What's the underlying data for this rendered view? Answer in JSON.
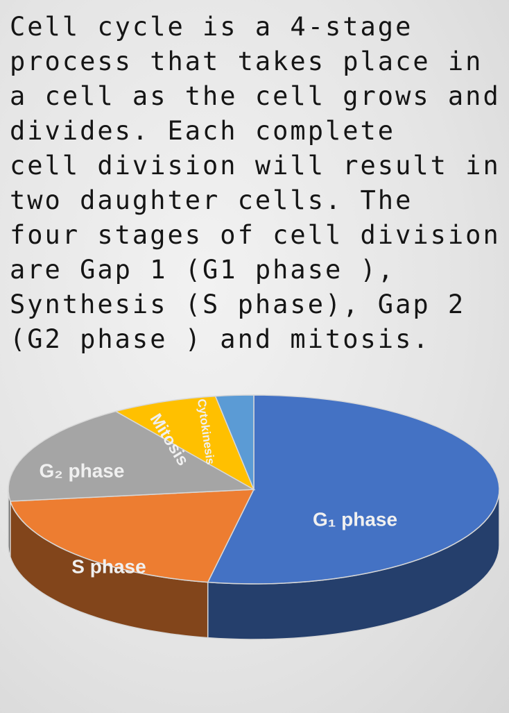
{
  "text": [
    "Cell cycle is a 4-stage",
    "process that takes place in",
    "a cell as the cell grows and",
    "divides. Each complete",
    "cell division will result in",
    "two daughter cells. The",
    "four stages of cell division",
    "are Gap 1 (G1 phase ),",
    "Synthesis (S phase), Gap 2",
    "(G2 phase ) and mitosis."
  ],
  "chart_data": {
    "type": "pie",
    "categories": [
      "G₁ phase",
      "S phase",
      "G₂ phase",
      "Mitosis",
      "Cytokinesis"
    ],
    "values": [
      53,
      20,
      17.5,
      7,
      2.5
    ],
    "colors": [
      "#4472c4",
      "#ed7d31",
      "#a5a5a5",
      "#ffc000",
      "#5b9bd5"
    ]
  }
}
